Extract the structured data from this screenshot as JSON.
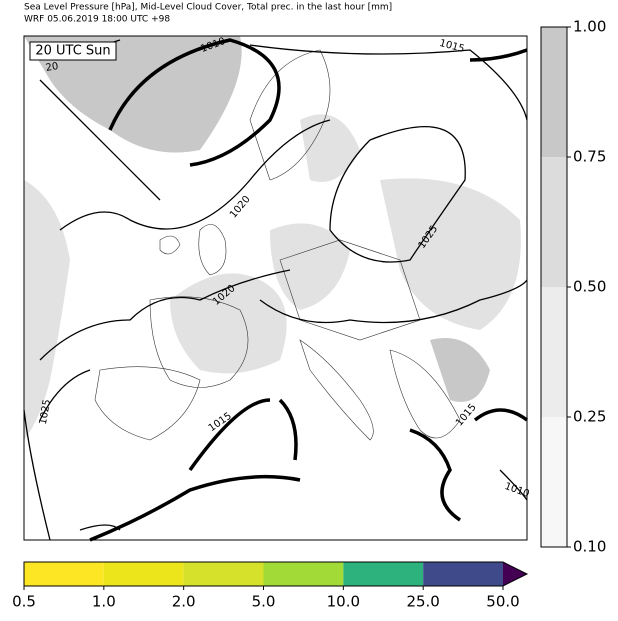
{
  "header": {
    "title_line1": "Sea Level Pressure [hPa], Mid-Level Cloud Cover, Total prec. in the last hour [mm]",
    "title_line2": "WRF 05.06.2019 18:00 UTC +98"
  },
  "map": {
    "time_label": "20 UTC Sun",
    "isobar_labels": [
      "1010",
      "1015",
      "20",
      "1020",
      "1025",
      "1020",
      "1025",
      "1015",
      "1015",
      "1010"
    ]
  },
  "cloud_colorbar": {
    "colors": [
      "#f7f7f7",
      "#ececec",
      "#dcdcdc",
      "#c8c8c8"
    ],
    "ticks": [
      {
        "value": 0.1,
        "label": "0.10"
      },
      {
        "value": 0.25,
        "label": "0.25"
      },
      {
        "value": 0.5,
        "label": "0.50"
      },
      {
        "value": 0.75,
        "label": "0.75"
      },
      {
        "value": 1.0,
        "label": "1.00"
      }
    ]
  },
  "precip_colorbar": {
    "colors": [
      "#fde725",
      "#ece51b",
      "#d5e12a",
      "#a2da37",
      "#2db27d",
      "#3e4a89",
      "#440154"
    ],
    "ticks": [
      {
        "value": 0.5,
        "label": "0.5"
      },
      {
        "value": 1.0,
        "label": "1.0"
      },
      {
        "value": 2.0,
        "label": "2.0"
      },
      {
        "value": 5.0,
        "label": "5.0"
      },
      {
        "value": 10.0,
        "label": "10.0"
      },
      {
        "value": 25.0,
        "label": "25.0"
      },
      {
        "value": 50.0,
        "label": "50.0"
      }
    ]
  }
}
